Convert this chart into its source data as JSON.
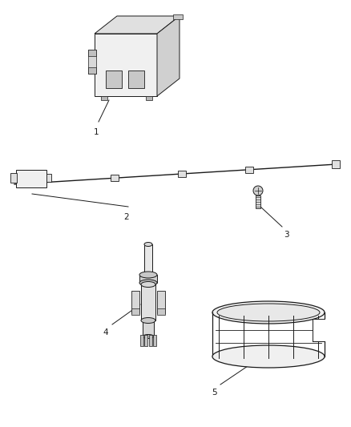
{
  "background_color": "#ffffff",
  "line_color": "#1a1a1a",
  "figsize": [
    4.38,
    5.33
  ],
  "dpi": 100,
  "label_fontsize": 7.5
}
